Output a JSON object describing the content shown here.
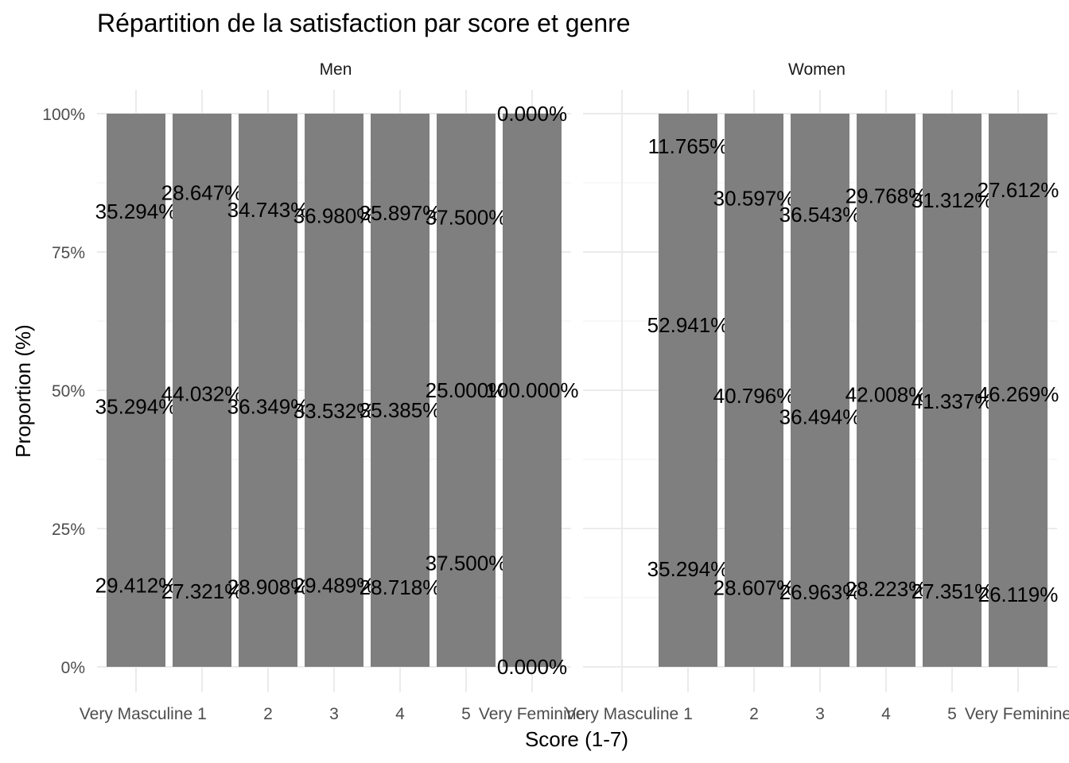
{
  "chart_data": {
    "type": "bar",
    "stacked": true,
    "title": "Répartition de la satisfaction par score et genre",
    "xlabel": "Score (1-7)",
    "ylabel": "Proportion (%)",
    "ylim": [
      0,
      1
    ],
    "y_ticks": [
      "0%",
      "25%",
      "50%",
      "75%",
      "100%"
    ],
    "grid": true,
    "bar_color": "#7f7f7f",
    "categories": [
      "Very Masculine",
      "1",
      "2",
      "3",
      "4",
      "5",
      "Very Feminine"
    ],
    "panels": [
      {
        "name": "Men",
        "bars": [
          {
            "category": "Very Masculine",
            "segments": [
              0.29412,
              0.35294,
              0.35294
            ],
            "labels": [
              "29.412%",
              "35.294%",
              "35.294%"
            ]
          },
          {
            "category": "1",
            "segments": [
              0.27321,
              0.44032,
              0.28647
            ],
            "labels": [
              "27.321%",
              "44.032%",
              "28.647%"
            ]
          },
          {
            "category": "2",
            "segments": [
              0.28908,
              0.36349,
              0.34743
            ],
            "labels": [
              "28.908%",
              "36.349%",
              "34.743%"
            ]
          },
          {
            "category": "3",
            "segments": [
              0.29489,
              0.33532,
              0.3698
            ],
            "labels": [
              "29.489%",
              "33.532%",
              "36.980%"
            ]
          },
          {
            "category": "4",
            "segments": [
              0.28718,
              0.35385,
              0.35897
            ],
            "labels": [
              "28.718%",
              "35.385%",
              "35.897%"
            ]
          },
          {
            "category": "5",
            "segments": [
              0.375,
              0.25,
              0.375
            ],
            "labels": [
              "37.500%",
              "25.000%",
              "37.500%"
            ]
          },
          {
            "category": "Very Feminine",
            "segments": [
              0.0,
              1.0,
              0.0
            ],
            "labels": [
              "0.000%",
              "100.000%",
              "0.000%"
            ]
          }
        ]
      },
      {
        "name": "Women",
        "bars": [
          {
            "category": "Very Masculine",
            "segments": null,
            "labels": []
          },
          {
            "category": "1",
            "segments": [
              0.35294,
              0.52941,
              0.11765
            ],
            "labels": [
              "35.294%",
              "52.941%",
              "11.765%"
            ]
          },
          {
            "category": "2",
            "segments": [
              0.28607,
              0.40796,
              0.30597
            ],
            "labels": [
              "28.607%",
              "40.796%",
              "30.597%"
            ]
          },
          {
            "category": "3",
            "segments": [
              0.26963,
              0.36494,
              0.36543
            ],
            "labels": [
              "26.963%",
              "36.494%",
              "36.543%"
            ]
          },
          {
            "category": "4",
            "segments": [
              0.28223,
              0.42008,
              0.29768
            ],
            "labels": [
              "28.223%",
              "42.008%",
              "29.768%"
            ]
          },
          {
            "category": "5",
            "segments": [
              0.27351,
              0.41337,
              0.31312
            ],
            "labels": [
              "27.351%",
              "41.337%",
              "31.312%"
            ]
          },
          {
            "category": "Very Feminine",
            "segments": [
              0.26119,
              0.46269,
              0.27612
            ],
            "labels": [
              "26.119%",
              "46.269%",
              "27.612%"
            ]
          }
        ]
      }
    ]
  }
}
